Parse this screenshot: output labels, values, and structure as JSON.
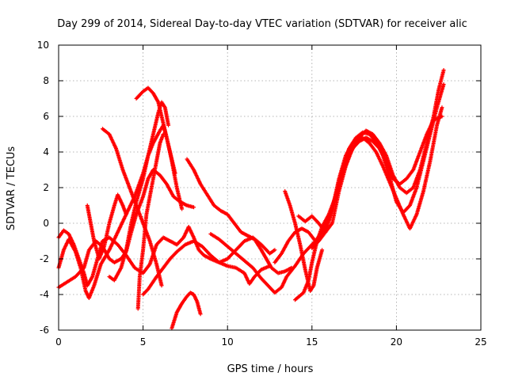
{
  "chart_data": {
    "type": "scatter",
    "title": "Day 299 of 2014, Sidereal Day-to-day VTEC variation (SDTVAR) for receiver alic",
    "xlabel": "GPS time / hours",
    "ylabel": "SDTVAR / TECUs",
    "xlim": [
      0,
      25
    ],
    "ylim": [
      -6,
      10
    ],
    "xticks": [
      "0",
      "5",
      "10",
      "15",
      "20",
      "25"
    ],
    "yticks": [
      "-6",
      "-4",
      "-2",
      "0",
      "2",
      "4",
      "6",
      "8",
      "10"
    ],
    "grid": true,
    "marker": "plus",
    "color": "#ff0000",
    "series": [
      {
        "points": [
          [
            0,
            -0.8
          ],
          [
            0.3,
            -0.4
          ],
          [
            0.6,
            -0.6
          ],
          [
            0.9,
            -1.2
          ],
          [
            1.2,
            -2.0
          ],
          [
            1.5,
            -2.8
          ],
          [
            1.7,
            -3.5
          ],
          [
            2.0,
            -3.0
          ],
          [
            2.3,
            -2.0
          ],
          [
            2.6,
            -1.0
          ],
          [
            3.0,
            -0.8
          ],
          [
            3.5,
            -1.2
          ],
          [
            4.0,
            -1.8
          ],
          [
            4.5,
            -2.5
          ],
          [
            5.0,
            -2.8
          ],
          [
            5.4,
            -2.3
          ],
          [
            5.8,
            -1.2
          ],
          [
            6.2,
            -0.8
          ],
          [
            6.6,
            -1.0
          ],
          [
            7.0,
            -1.2
          ],
          [
            7.4,
            -0.8
          ],
          [
            7.7,
            -0.2
          ],
          [
            8.0,
            -0.8
          ],
          [
            8.3,
            -1.5
          ],
          [
            8.6,
            -1.8
          ],
          [
            9.0,
            -2.0
          ],
          [
            9.5,
            -2.2
          ],
          [
            10.0,
            -2.0
          ],
          [
            10.5,
            -1.5
          ],
          [
            11.0,
            -1.0
          ],
          [
            11.5,
            -0.8
          ],
          [
            12.0,
            -1.2
          ],
          [
            12.5,
            -1.7
          ],
          [
            12.8,
            -1.5
          ]
        ]
      },
      {
        "points": [
          [
            0,
            -3.6
          ],
          [
            0.5,
            -3.3
          ],
          [
            1.0,
            -3.0
          ],
          [
            1.5,
            -2.5
          ],
          [
            1.8,
            -1.5
          ],
          [
            2.2,
            -1.0
          ],
          [
            2.6,
            -1.3
          ],
          [
            3.0,
            -2.0
          ],
          [
            3.3,
            -2.2
          ],
          [
            3.7,
            -2.0
          ],
          [
            4.0,
            -1.6
          ],
          [
            4.3,
            -0.5
          ],
          [
            4.6,
            0.5
          ],
          [
            5.0,
            1.5
          ],
          [
            5.3,
            2.5
          ],
          [
            5.6,
            3.0
          ],
          [
            6.0,
            2.7
          ],
          [
            6.4,
            2.2
          ],
          [
            6.8,
            1.5
          ],
          [
            7.2,
            1.2
          ],
          [
            7.6,
            1.0
          ],
          [
            8.0,
            0.9
          ]
        ]
      },
      {
        "points": [
          [
            0,
            -2.5
          ],
          [
            0.3,
            -1.5
          ],
          [
            0.6,
            -0.9
          ],
          [
            1.0,
            -1.6
          ],
          [
            1.3,
            -2.5
          ],
          [
            1.6,
            -3.8
          ],
          [
            1.8,
            -4.2
          ],
          [
            2.1,
            -3.5
          ],
          [
            2.5,
            -2.3
          ],
          [
            3.0,
            -1.5
          ],
          [
            3.5,
            -0.5
          ],
          [
            4.0,
            0.5
          ],
          [
            4.5,
            1.5
          ],
          [
            5.0,
            2.8
          ],
          [
            5.3,
            3.8
          ],
          [
            5.6,
            4.5
          ],
          [
            6.0,
            5.2
          ],
          [
            6.2,
            5.5
          ],
          [
            6.4,
            4.8
          ],
          [
            6.7,
            3.5
          ],
          [
            7.0,
            2.0
          ],
          [
            7.3,
            0.8
          ]
        ]
      },
      {
        "points": [
          [
            2.6,
            5.3
          ],
          [
            3.0,
            5.0
          ],
          [
            3.4,
            4.2
          ],
          [
            3.8,
            3.0
          ],
          [
            4.2,
            2.0
          ],
          [
            4.6,
            1.0
          ],
          [
            5.0,
            0.0
          ],
          [
            5.4,
            -1.0
          ],
          [
            5.8,
            -2.3
          ],
          [
            6.1,
            -3.5
          ]
        ]
      },
      {
        "points": [
          [
            4.7,
            -4.8
          ],
          [
            4.8,
            -3.0
          ],
          [
            5.0,
            -1.5
          ],
          [
            5.2,
            0.5
          ],
          [
            5.5,
            2.0
          ],
          [
            5.8,
            3.5
          ],
          [
            6.0,
            4.5
          ],
          [
            6.2,
            5.0
          ]
        ]
      },
      {
        "points": [
          [
            4.6,
            7.0
          ],
          [
            5.0,
            7.4
          ],
          [
            5.3,
            7.6
          ],
          [
            5.6,
            7.3
          ],
          [
            5.9,
            6.8
          ],
          [
            6.1,
            6.0
          ],
          [
            6.3,
            5.2
          ],
          [
            6.6,
            4.0
          ],
          [
            6.9,
            2.8
          ]
        ]
      },
      {
        "points": [
          [
            3.0,
            -3.0
          ],
          [
            3.3,
            -3.2
          ],
          [
            3.7,
            -2.5
          ],
          [
            4.0,
            -1.5
          ],
          [
            4.3,
            0.0
          ],
          [
            4.6,
            1.2
          ],
          [
            5.0,
            2.5
          ],
          [
            5.3,
            3.8
          ],
          [
            5.6,
            5.0
          ],
          [
            5.9,
            6.2
          ],
          [
            6.1,
            6.8
          ],
          [
            6.3,
            6.5
          ],
          [
            6.5,
            5.5
          ]
        ]
      },
      {
        "points": [
          [
            5.0,
            -4.0
          ],
          [
            5.3,
            -3.7
          ],
          [
            5.8,
            -3.0
          ],
          [
            6.2,
            -2.5
          ],
          [
            6.6,
            -2.0
          ],
          [
            7.0,
            -1.6
          ],
          [
            7.5,
            -1.2
          ],
          [
            8.0,
            -1.0
          ],
          [
            8.5,
            -1.3
          ],
          [
            9.0,
            -1.8
          ],
          [
            9.5,
            -2.2
          ],
          [
            10.0,
            -2.4
          ],
          [
            10.5,
            -2.5
          ],
          [
            11.0,
            -2.8
          ],
          [
            11.3,
            -3.4
          ],
          [
            11.6,
            -3.0
          ],
          [
            12.0,
            -2.6
          ],
          [
            12.5,
            -2.4
          ]
        ]
      },
      {
        "points": [
          [
            6.7,
            -5.9
          ],
          [
            7.0,
            -5.0
          ],
          [
            7.3,
            -4.5
          ],
          [
            7.6,
            -4.1
          ],
          [
            7.8,
            -3.9
          ],
          [
            8.0,
            -4.0
          ],
          [
            8.2,
            -4.4
          ],
          [
            8.4,
            -5.1
          ]
        ]
      },
      {
        "points": [
          [
            1.7,
            1.0
          ],
          [
            1.9,
            0.0
          ],
          [
            2.1,
            -1.0
          ],
          [
            2.4,
            -2.0
          ],
          [
            2.7,
            -1.3
          ],
          [
            3.0,
            0.0
          ],
          [
            3.3,
            1.0
          ],
          [
            3.5,
            1.6
          ],
          [
            3.8,
            1.0
          ],
          [
            4.0,
            0.5
          ]
        ]
      },
      {
        "points": [
          [
            7.6,
            3.6
          ],
          [
            8.0,
            3.0
          ],
          [
            8.4,
            2.2
          ],
          [
            8.8,
            1.6
          ],
          [
            9.2,
            1.0
          ],
          [
            9.6,
            0.7
          ],
          [
            10.0,
            0.5
          ],
          [
            10.4,
            0.0
          ],
          [
            10.8,
            -0.5
          ],
          [
            11.2,
            -0.7
          ],
          [
            11.6,
            -0.9
          ],
          [
            12.0,
            -1.5
          ],
          [
            12.3,
            -2.0
          ],
          [
            12.6,
            -2.5
          ],
          [
            13.0,
            -2.8
          ],
          [
            13.4,
            -2.7
          ],
          [
            13.8,
            -2.5
          ]
        ]
      },
      {
        "points": [
          [
            9.0,
            -0.6
          ],
          [
            9.5,
            -0.9
          ],
          [
            10.0,
            -1.3
          ],
          [
            10.5,
            -1.7
          ],
          [
            11.0,
            -2.1
          ],
          [
            11.5,
            -2.5
          ],
          [
            12.0,
            -3.1
          ],
          [
            12.4,
            -3.5
          ],
          [
            12.8,
            -3.9
          ],
          [
            13.2,
            -3.6
          ],
          [
            13.5,
            -3.0
          ],
          [
            14.0,
            -2.4
          ],
          [
            14.5,
            -1.7
          ],
          [
            15.0,
            -1.2
          ],
          [
            15.4,
            -0.8
          ]
        ]
      },
      {
        "points": [
          [
            13.4,
            1.8
          ],
          [
            13.7,
            1.0
          ],
          [
            14.0,
            0.0
          ],
          [
            14.3,
            -1.2
          ],
          [
            14.6,
            -2.6
          ],
          [
            14.9,
            -3.8
          ],
          [
            15.1,
            -3.5
          ],
          [
            15.3,
            -2.5
          ],
          [
            15.6,
            -1.5
          ]
        ]
      },
      {
        "points": [
          [
            14.0,
            -4.3
          ],
          [
            14.5,
            -3.9
          ],
          [
            14.8,
            -3.2
          ],
          [
            15.0,
            -2.2
          ],
          [
            15.3,
            -1.0
          ],
          [
            15.6,
            -0.2
          ],
          [
            16.0,
            0.5
          ],
          [
            16.4,
            1.5
          ],
          [
            16.8,
            2.8
          ],
          [
            17.2,
            3.8
          ],
          [
            17.6,
            4.5
          ],
          [
            18.0,
            4.8
          ],
          [
            18.4,
            4.5
          ],
          [
            18.8,
            4.0
          ],
          [
            19.2,
            3.2
          ],
          [
            19.6,
            2.3
          ],
          [
            20.0,
            1.4
          ],
          [
            20.4,
            0.5
          ],
          [
            20.8,
            -0.3
          ],
          [
            21.2,
            0.5
          ],
          [
            21.6,
            1.8
          ],
          [
            22.0,
            3.5
          ],
          [
            22.4,
            5.5
          ],
          [
            22.7,
            6.5
          ]
        ]
      },
      {
        "points": [
          [
            12.8,
            -2.2
          ],
          [
            13.2,
            -1.7
          ],
          [
            13.6,
            -1.0
          ],
          [
            14.0,
            -0.5
          ],
          [
            14.4,
            -0.3
          ],
          [
            14.8,
            -0.5
          ],
          [
            15.2,
            -1.0
          ],
          [
            15.6,
            -0.5
          ],
          [
            16.0,
            0.2
          ],
          [
            16.4,
            1.5
          ],
          [
            16.8,
            3.0
          ],
          [
            17.2,
            4.2
          ],
          [
            17.6,
            4.8
          ],
          [
            18.0,
            5.1
          ],
          [
            18.4,
            5.0
          ],
          [
            18.8,
            4.6
          ],
          [
            19.2,
            3.8
          ],
          [
            19.6,
            2.6
          ],
          [
            20.0,
            1.2
          ],
          [
            20.4,
            0.6
          ],
          [
            20.8,
            1.0
          ],
          [
            21.2,
            2.0
          ],
          [
            21.6,
            3.5
          ],
          [
            22.0,
            5.0
          ],
          [
            22.4,
            6.5
          ],
          [
            22.8,
            7.8
          ]
        ]
      },
      {
        "points": [
          [
            15.0,
            -1.4
          ],
          [
            15.4,
            -1.0
          ],
          [
            15.8,
            -0.5
          ],
          [
            16.2,
            0.8
          ],
          [
            16.6,
            2.5
          ],
          [
            17.0,
            3.8
          ],
          [
            17.4,
            4.5
          ],
          [
            17.8,
            4.8
          ],
          [
            18.2,
            5.2
          ],
          [
            18.6,
            5.0
          ],
          [
            19.0,
            4.5
          ],
          [
            19.4,
            3.8
          ],
          [
            19.8,
            2.7
          ],
          [
            20.2,
            2.0
          ],
          [
            20.6,
            1.7
          ],
          [
            21.0,
            2.0
          ],
          [
            21.4,
            3.0
          ],
          [
            21.8,
            4.5
          ],
          [
            22.2,
            6.0
          ],
          [
            22.5,
            7.5
          ],
          [
            22.8,
            8.6
          ]
        ]
      },
      {
        "points": [
          [
            14.2,
            0.4
          ],
          [
            14.6,
            0.1
          ],
          [
            15.0,
            0.4
          ],
          [
            15.4,
            0.0
          ],
          [
            15.8,
            -0.5
          ],
          [
            16.2,
            0.0
          ],
          [
            16.6,
            1.8
          ],
          [
            17.0,
            3.2
          ],
          [
            17.4,
            4.2
          ],
          [
            17.8,
            4.6
          ],
          [
            18.2,
            4.8
          ],
          [
            18.6,
            4.6
          ],
          [
            19.0,
            4.2
          ],
          [
            19.4,
            3.5
          ],
          [
            19.8,
            2.5
          ],
          [
            20.2,
            2.2
          ],
          [
            20.6,
            2.5
          ],
          [
            21.0,
            3.0
          ],
          [
            21.4,
            4.0
          ],
          [
            21.8,
            5.0
          ],
          [
            22.2,
            5.8
          ],
          [
            22.7,
            6.0
          ]
        ]
      }
    ]
  }
}
